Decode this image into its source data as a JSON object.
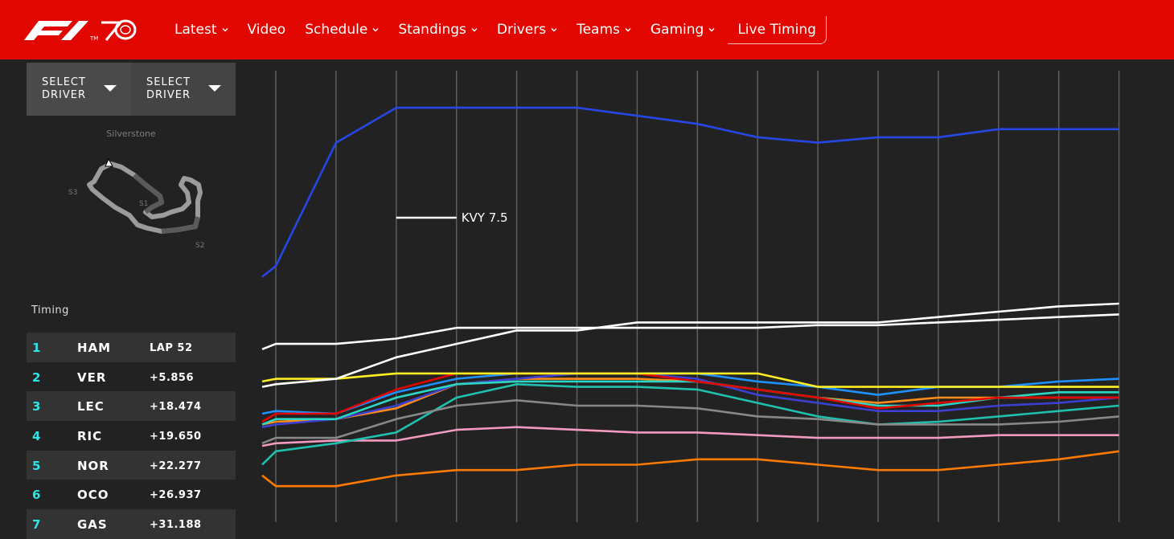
{
  "nav": {
    "items": [
      {
        "label": "Latest",
        "dropdown": true
      },
      {
        "label": "Video",
        "dropdown": false
      },
      {
        "label": "Schedule",
        "dropdown": true
      },
      {
        "label": "Standings",
        "dropdown": true
      },
      {
        "label": "Drivers",
        "dropdown": true
      },
      {
        "label": "Teams",
        "dropdown": true
      },
      {
        "label": "Gaming",
        "dropdown": true
      },
      {
        "label": "Live Timing",
        "dropdown": false
      }
    ],
    "brand_color": "#e10600"
  },
  "selectors": [
    {
      "label": "SELECT DRIVER"
    },
    {
      "label": "SELECT DRIVER"
    }
  ],
  "track": {
    "name": "Silverstone",
    "sectors": [
      "S1",
      "S2",
      "S3"
    ]
  },
  "timing": {
    "label": "Timing",
    "rows": [
      {
        "pos": "1",
        "code": "HAM",
        "gap": "LAP 52"
      },
      {
        "pos": "2",
        "code": "VER",
        "gap": "+5.856"
      },
      {
        "pos": "3",
        "code": "LEC",
        "gap": "+18.474"
      },
      {
        "pos": "4",
        "code": "RIC",
        "gap": "+19.650"
      },
      {
        "pos": "5",
        "code": "NOR",
        "gap": "+22.277"
      },
      {
        "pos": "6",
        "code": "OCO",
        "gap": "+26.937"
      },
      {
        "pos": "7",
        "code": "GAS",
        "gap": "+31.188"
      }
    ]
  },
  "chart_data": {
    "type": "line",
    "annotation": {
      "series": "KVY",
      "text": "KVY 7.5"
    },
    "series": [
      {
        "color": "#2646e6",
        "values": [
          222,
          226,
          272,
          285,
          285,
          285,
          285,
          282,
          279,
          274,
          272,
          274,
          274,
          277,
          277,
          277
        ]
      },
      {
        "color": "#ffffff",
        "values": [
          195,
          197,
          197,
          199,
          203,
          203,
          203,
          203,
          203,
          203,
          204,
          204,
          205,
          206,
          207,
          208
        ]
      },
      {
        "color": "#ffffff",
        "values": [
          181,
          182,
          184,
          192,
          197,
          202,
          202,
          205,
          205,
          205,
          205,
          205,
          207,
          209,
          211,
          212
        ]
      },
      {
        "color": "#ffee22",
        "values": [
          183,
          184,
          184,
          186,
          186,
          186,
          186,
          186,
          186,
          186,
          181,
          181,
          181,
          181,
          181,
          181
        ]
      },
      {
        "color": "#e10600",
        "values": [
          168,
          171,
          171,
          180,
          186,
          186,
          186,
          186,
          183,
          180,
          177,
          173,
          175,
          177,
          177,
          177
        ]
      },
      {
        "color": "#1e90ff",
        "values": [
          171,
          172,
          171,
          179,
          184,
          186,
          186,
          186,
          186,
          183,
          181,
          178,
          181,
          181,
          183,
          184
        ]
      },
      {
        "color": "#2bd6c4",
        "values": [
          167,
          169,
          169,
          177,
          182,
          183,
          183,
          183,
          183,
          180,
          177,
          174,
          174,
          177,
          179,
          179
        ]
      },
      {
        "color": "#3b40d0",
        "values": [
          166,
          167,
          169,
          174,
          182,
          184,
          186,
          186,
          184,
          178,
          175,
          172,
          172,
          174,
          175,
          177
        ]
      },
      {
        "color": "#ff8c1a",
        "values": [
          167,
          168,
          169,
          173,
          182,
          184,
          184,
          184,
          183,
          180,
          177,
          175,
          177,
          177,
          177,
          177
        ]
      },
      {
        "color": "#888888",
        "values": [
          160,
          162,
          162,
          169,
          174,
          176,
          174,
          174,
          173,
          170,
          169,
          167,
          167,
          167,
          168,
          170
        ]
      },
      {
        "color": "#20c0b0",
        "values": [
          152,
          157,
          160,
          164,
          177,
          182,
          181,
          181,
          180,
          175,
          170,
          167,
          168,
          170,
          172,
          174
        ]
      },
      {
        "color": "#f29ac0",
        "values": [
          159,
          160,
          161,
          161,
          165,
          166,
          165,
          164,
          164,
          163,
          162,
          162,
          162,
          163,
          163,
          163
        ]
      },
      {
        "color": "#ff7a00",
        "values": [
          148,
          144,
          144,
          148,
          150,
          150,
          152,
          152,
          154,
          154,
          152,
          150,
          150,
          152,
          154,
          157
        ]
      }
    ]
  }
}
